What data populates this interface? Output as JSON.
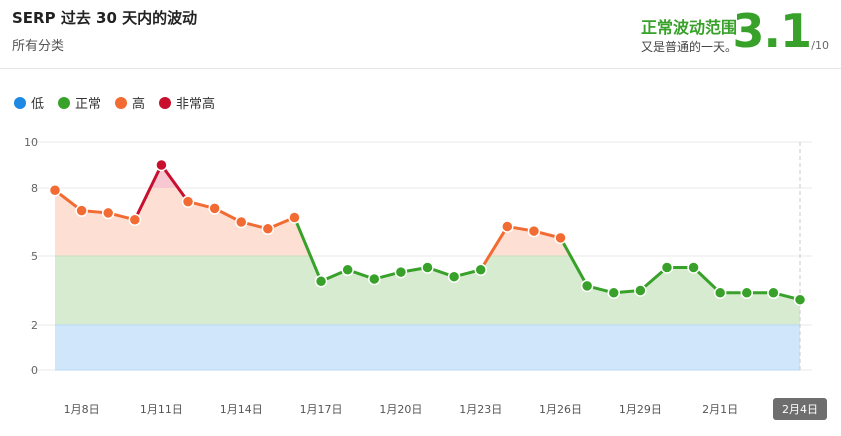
{
  "header": {
    "title": "SERP 过去 30 天内的波动",
    "subtitle": "所有分类",
    "range_label": "正常波动范围",
    "range_desc": "又是普通的一天。",
    "score": "3.1",
    "score_max": "/10"
  },
  "legend": [
    {
      "label": "低",
      "color": "#1e88e5"
    },
    {
      "label": "正常",
      "color": "#38a12a"
    },
    {
      "label": "高",
      "color": "#f26b32"
    },
    {
      "label": "非常高",
      "color": "#c8102e"
    }
  ],
  "chart_data": {
    "type": "line",
    "title": "",
    "xlabel": "",
    "ylabel": "",
    "ylim": [
      0,
      10
    ],
    "y_ticks": [
      0,
      2,
      5,
      8,
      10
    ],
    "bands": [
      {
        "name": "低",
        "from": 0,
        "to": 2,
        "color": "#cfe6fb"
      },
      {
        "name": "正常",
        "from": 2,
        "to": 5,
        "color": "#d6ebcf"
      },
      {
        "name": "高",
        "from": 5,
        "to": 8,
        "color": "#fde0d3"
      },
      {
        "name": "非常高",
        "from": 8,
        "to": 10,
        "color": "#f8c8d2"
      }
    ],
    "x": [
      "1月7日",
      "1月8日",
      "1月9日",
      "1月10日",
      "1月11日",
      "1月12日",
      "1月13日",
      "1月14日",
      "1月15日",
      "1月16日",
      "1月17日",
      "1月18日",
      "1月19日",
      "1月20日",
      "1月21日",
      "1月22日",
      "1月23日",
      "1月24日",
      "1月25日",
      "1月26日",
      "1月27日",
      "1月28日",
      "1月29日",
      "1月30日",
      "1月31日",
      "2月1日",
      "2月2日",
      "2月3日",
      "2月4日"
    ],
    "x_tick_labels": [
      "1月8日",
      "1月11日",
      "1月14日",
      "1月17日",
      "1月20日",
      "1月23日",
      "1月26日",
      "1月29日",
      "2月1日",
      "2月4日"
    ],
    "highlight_label": "2月4日",
    "series": [
      {
        "values": [
          7.9,
          7.0,
          6.9,
          6.6,
          9.0,
          7.4,
          7.1,
          6.5,
          6.2,
          6.7,
          3.9,
          4.4,
          4.0,
          4.3,
          4.5,
          4.1,
          4.4,
          6.3,
          6.1,
          5.8,
          3.7,
          3.4,
          3.5,
          4.5,
          4.5,
          3.4,
          3.4,
          3.4,
          3.1
        ]
      }
    ],
    "colors": {
      "low": "#1e88e5",
      "normal": "#38a12a",
      "high": "#f26b32",
      "very_high": "#c8102e"
    }
  }
}
